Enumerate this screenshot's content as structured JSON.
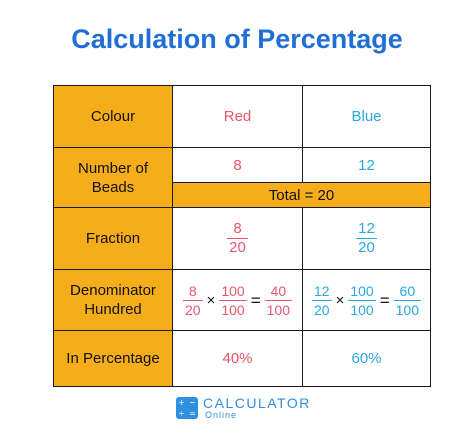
{
  "title": "Calculation of Percentage",
  "colors": {
    "title": "#1f6fd6",
    "header_fill": "#f6ad1b",
    "red": "#e8566a",
    "blue": "#2aa8de"
  },
  "table": {
    "colour_label": "Colour",
    "red": "Red",
    "blue": "Blue",
    "beads_label": "Number of Beads",
    "red_beads": "8",
    "blue_beads": "12",
    "total": "Total = 20",
    "fraction_label": "Fraction",
    "red_fraction": {
      "num": "8",
      "den": "20"
    },
    "blue_fraction": {
      "num": "12",
      "den": "20"
    },
    "denominator_label": "Denominator Hundred",
    "times": "×",
    "equals": "=",
    "red_calc": {
      "f1_num": "8",
      "f1_den": "20",
      "f2_num": "100",
      "f2_den": "100",
      "r_num": "40",
      "r_den": "100"
    },
    "blue_calc": {
      "f1_num": "12",
      "f1_den": "20",
      "f2_num": "100",
      "f2_den": "100",
      "r_num": "60",
      "r_den": "100"
    },
    "percentage_label": "In Percentage",
    "red_percent": "40%",
    "blue_percent": "60%"
  },
  "logo": {
    "name": "CALCULATOR",
    "sub": "Online",
    "icon_glyphs": [
      "+",
      "−",
      "÷",
      "="
    ]
  }
}
